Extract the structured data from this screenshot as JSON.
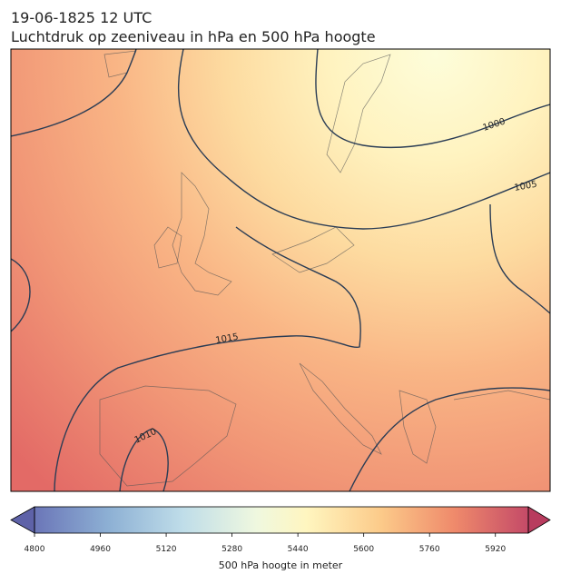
{
  "title": "19-06-1825 12 UTC",
  "subtitle": "Luchtdruk op zeeniveau in hPa en 500 hPa hoogte",
  "isobars": [
    1000,
    1005,
    1010,
    1015
  ],
  "colorbar": {
    "label": "500 hPa hoogte in meter",
    "range": [
      4800,
      6000
    ],
    "ticks": [
      4800,
      4960,
      5120,
      5280,
      5440,
      5600,
      5760,
      5920
    ]
  }
}
